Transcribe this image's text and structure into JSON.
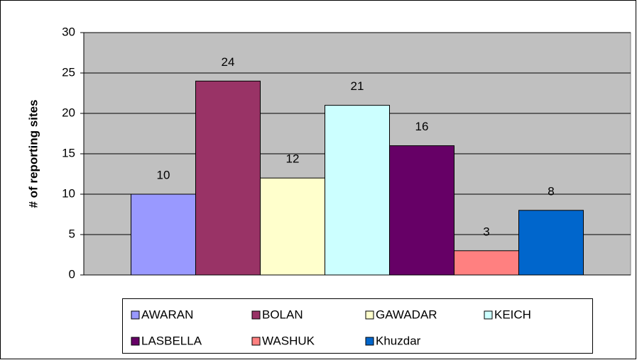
{
  "chart_data": {
    "type": "bar",
    "y_label": "# of reporting sites",
    "categories": [
      null
    ],
    "series": [
      {
        "name": "AWARAN",
        "color": "#9999ff",
        "values": [
          10
        ]
      },
      {
        "name": "BOLAN",
        "color": "#993366",
        "values": [
          24
        ]
      },
      {
        "name": "GAWADAR",
        "color": "#ffffcc",
        "values": [
          12
        ]
      },
      {
        "name": "KEICH",
        "color": "#ccffff",
        "values": [
          21
        ]
      },
      {
        "name": "LASBELLA",
        "color": "#660066",
        "values": [
          16
        ]
      },
      {
        "name": "WASHUK",
        "color": "#ff8080",
        "values": [
          3
        ]
      },
      {
        "name": "Khuzdar",
        "color": "#0066cc",
        "values": [
          8
        ]
      }
    ],
    "ylim": [
      0,
      30
    ],
    "yticks": [
      0,
      5,
      10,
      15,
      20,
      25,
      30
    ],
    "grid": true,
    "legend": "bottom",
    "plot_background": "#c0c0c0"
  }
}
